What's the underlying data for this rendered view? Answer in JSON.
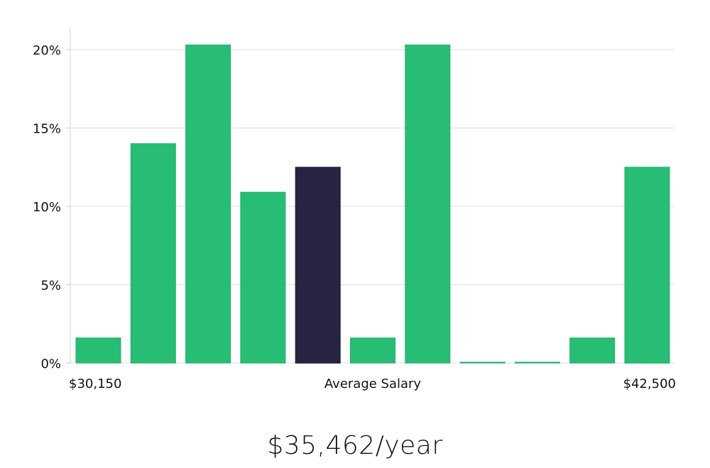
{
  "chart_data": {
    "type": "bar",
    "title": "",
    "xlabel": "Average Salary",
    "ylabel": "",
    "ylim": [
      0,
      21
    ],
    "yticks": [
      0,
      5,
      10,
      15,
      20
    ],
    "ytick_suffix": "%",
    "x_range_labels": {
      "min": "$30,150",
      "max": "$42,500"
    },
    "values": [
      1.6,
      14.0,
      20.3,
      10.9,
      12.5,
      1.6,
      20.3,
      0.0,
      0.0,
      1.6,
      12.5
    ],
    "highlight_index": 4,
    "grid": true,
    "colors": {
      "bar": "#28bd74",
      "bar_edge": "#1fae67",
      "highlight": "#272442",
      "grid": "#dedede",
      "axis": "#cfcfcf"
    }
  },
  "summary": {
    "average_salary": "$35,462/year"
  }
}
